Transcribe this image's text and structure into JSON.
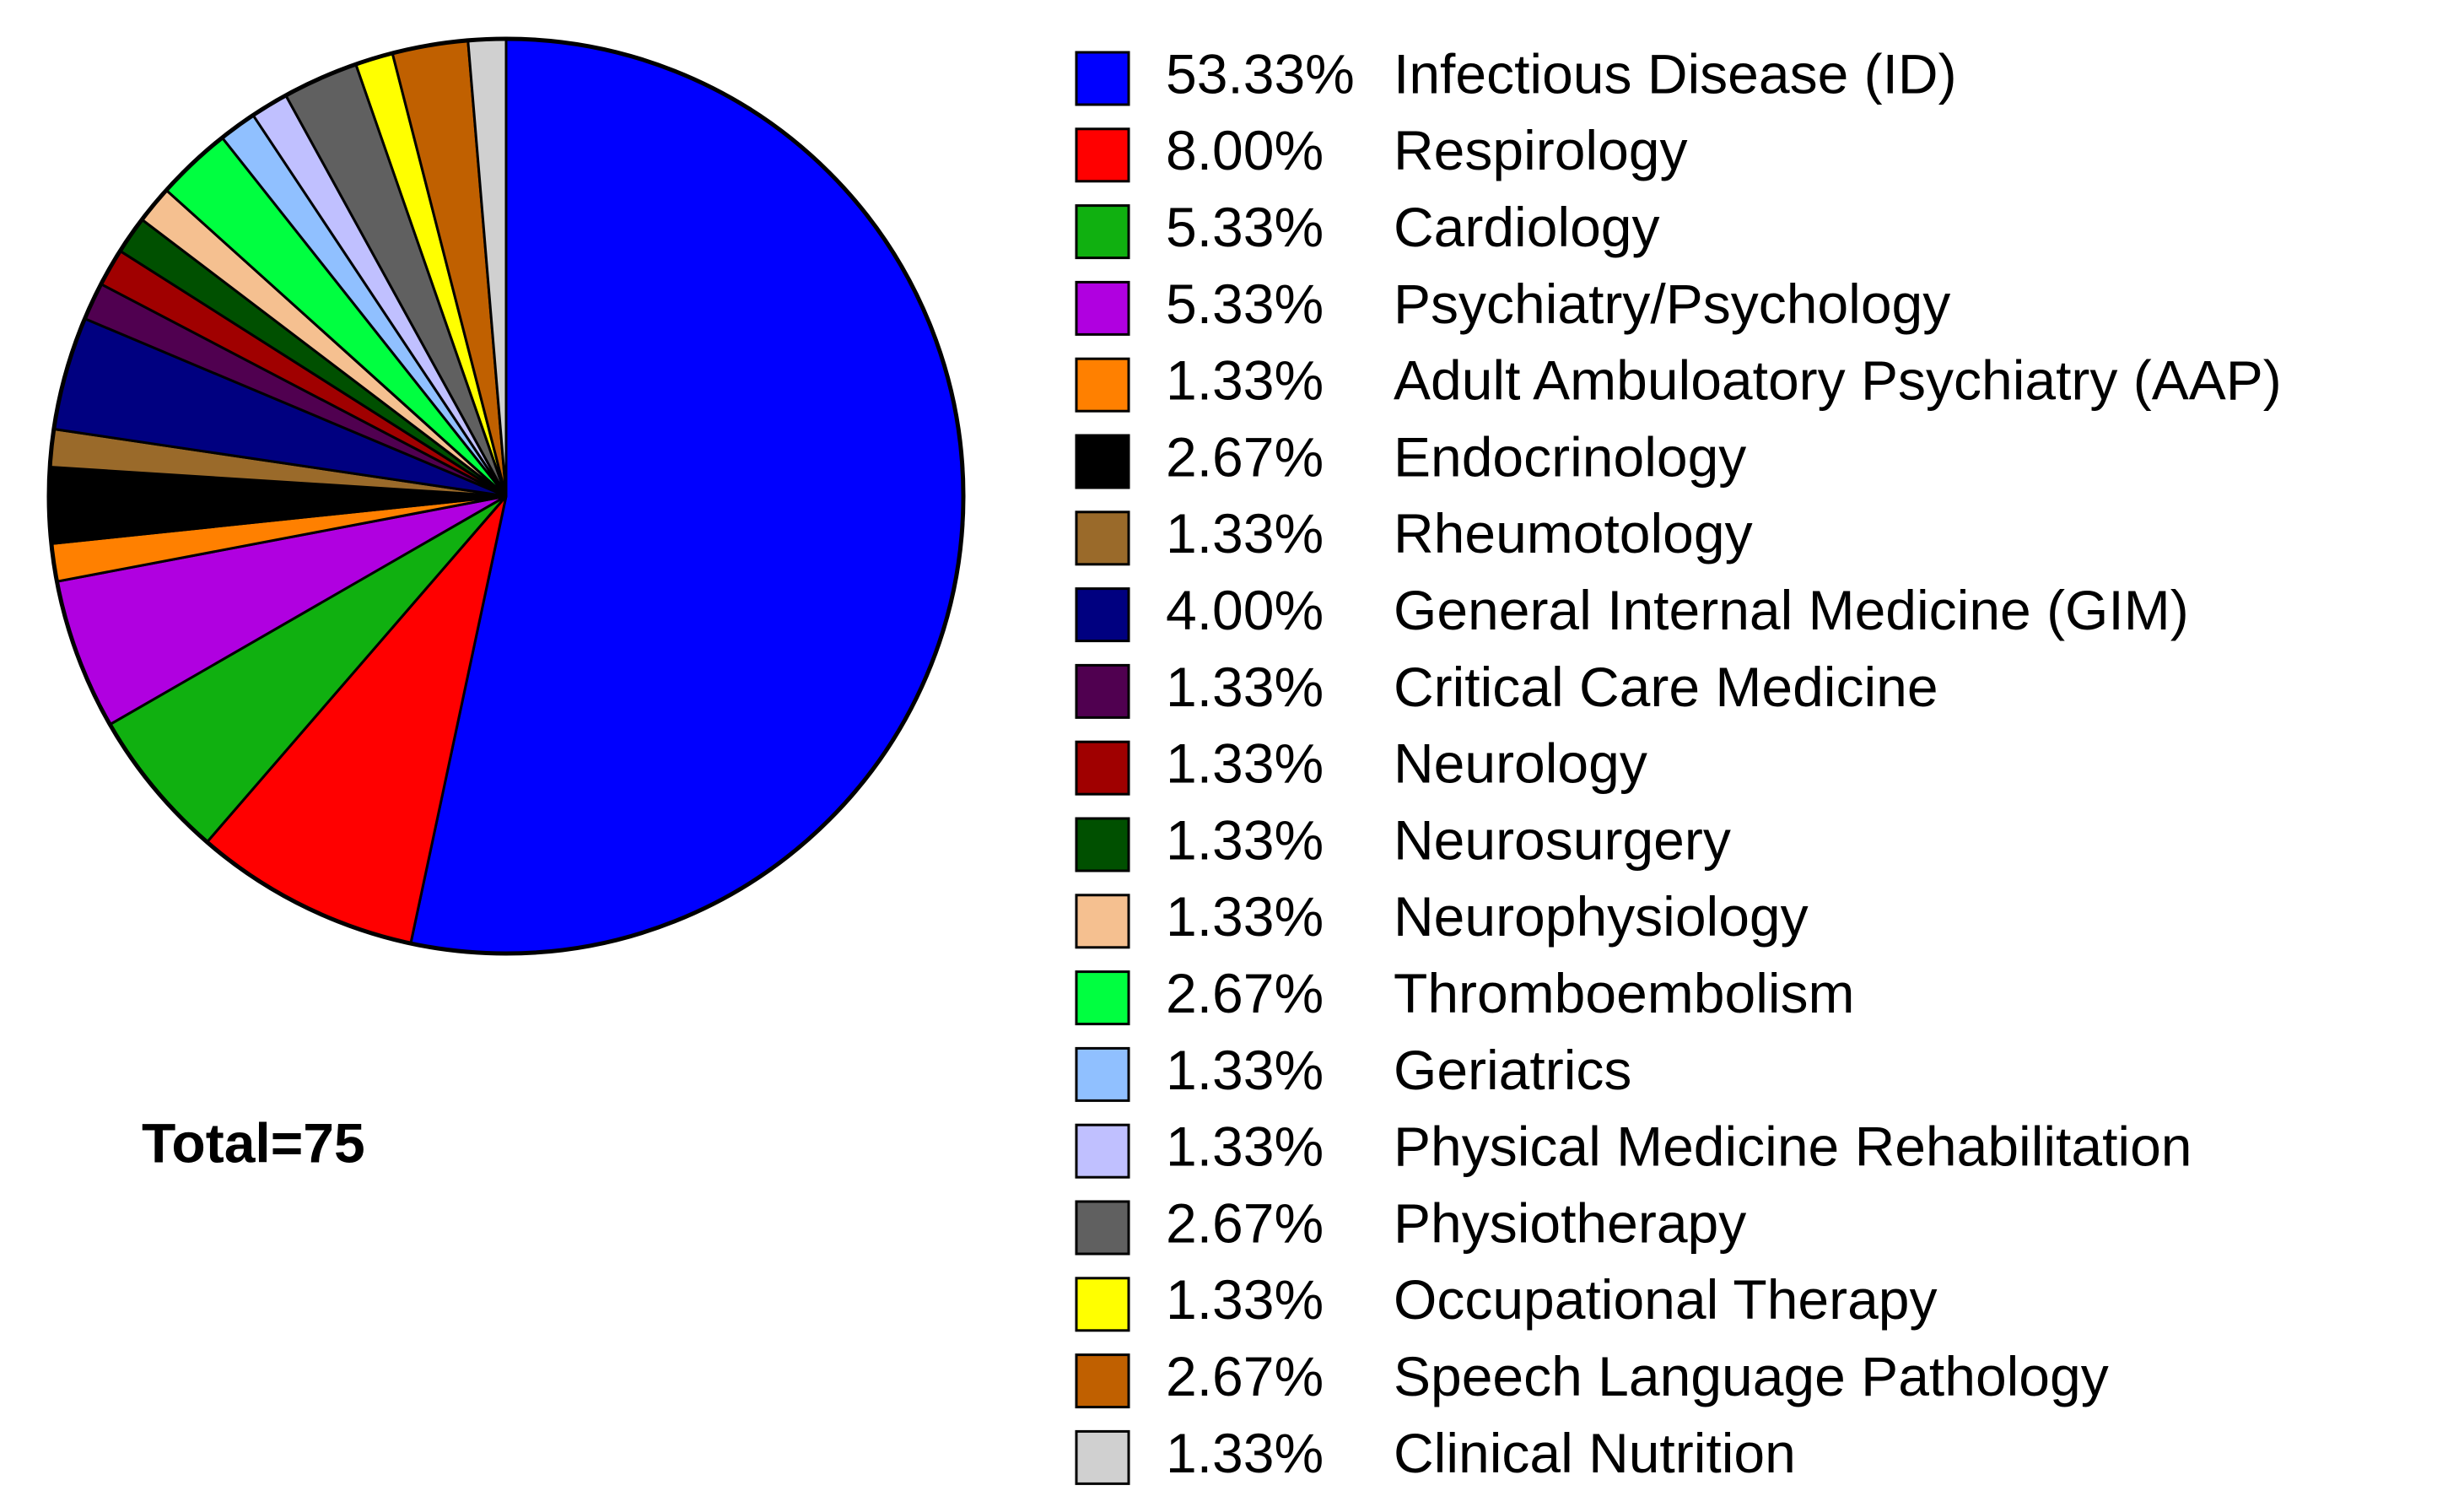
{
  "chart_data": {
    "type": "pie",
    "annotation": "Total=75",
    "categories": [
      "Infectious Disease (ID)",
      "Respirology",
      "Cardiology",
      "Psychiatry/Psychology",
      "Adult Ambuloatory Psychiatry (AAP)",
      "Endocrinology",
      "Rheumotology",
      "General Internal Medicine (GIM)",
      "Critical Care Medicine",
      "Neurology",
      "Neurosurgery",
      "Neurophysiology",
      "Thromboembolism",
      "Geriatrics",
      "Physical Medicine Rehabilitation",
      "Physiotherapy",
      "Occupational Therapy",
      "Speech Language Pathology",
      "Clinical Nutrition"
    ],
    "values": [
      53.33,
      8.0,
      5.33,
      5.33,
      1.33,
      2.67,
      1.33,
      4.0,
      1.33,
      1.33,
      1.33,
      1.33,
      2.67,
      1.33,
      1.33,
      2.67,
      1.33,
      2.67,
      1.33
    ],
    "value_labels": [
      "53.33%",
      "8.00%",
      "5.33%",
      "5.33%",
      "1.33%",
      "2.67%",
      "1.33%",
      "4.00%",
      "1.33%",
      "1.33%",
      "1.33%",
      "1.33%",
      "2.67%",
      "1.33%",
      "1.33%",
      "2.67%",
      "1.33%",
      "2.67%",
      "1.33%"
    ],
    "colors": [
      "#0000ff",
      "#ff0000",
      "#10b010",
      "#b000e0",
      "#ff8000",
      "#000000",
      "#9a6a2a",
      "#000080",
      "#500050",
      "#a00000",
      "#005000",
      "#f5c090",
      "#00ff40",
      "#90c0ff",
      "#c0c0ff",
      "#606060",
      "#ffff00",
      "#c06000",
      "#d0d0d0"
    ],
    "legend": "right"
  }
}
